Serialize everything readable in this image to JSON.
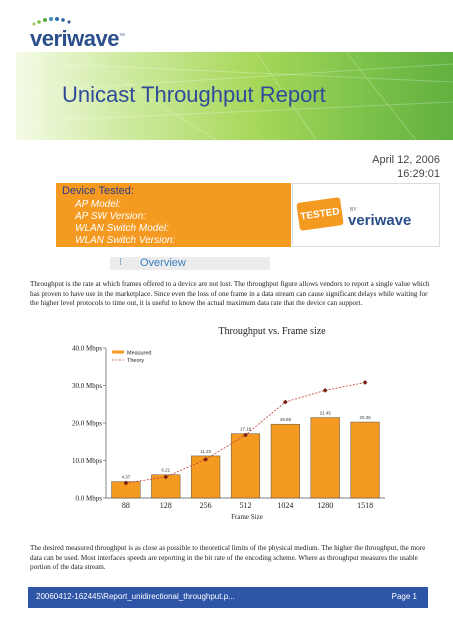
{
  "logo": {
    "text_a": "veri",
    "text_b": "wave",
    "trademark": "™"
  },
  "header": {
    "title": "Unicast Throughput Report",
    "date": "April 12, 2006",
    "time": "16:29:01"
  },
  "device": {
    "heading": "Device Tested:",
    "fields": [
      "AP Model:",
      "AP SW Version:",
      "WLAN Switch Model:",
      "WLAN Switch Version:"
    ]
  },
  "badge": {
    "tested": "TESTED",
    "by": "BY",
    "brand": "veriwave"
  },
  "overview": {
    "heading": "Overview",
    "paragraph1": "Throughput is the rate at which frames offered to a device are not lost. The throughput figure allows vendors to report a single value which has proven to have use in the marketplace. Since even the loss of one frame in a data stream can cause significant delays while waiting for the higher level protocols to time out, it is useful to know the actual maximum data rate that the device can support.",
    "paragraph2": "The desired measured throughput is as close as possible to theoretical limits of the physical medium. The higher the throughput, the more data can be used. Most interfaces speeds are reporting in the bit rate of the encoding scheme. Where as throughput measures the usable portion of the data stream."
  },
  "chart_data": {
    "type": "bar",
    "title": "Throughput vs. Frame size",
    "xlabel": "Frame Size",
    "ylabel": "",
    "categories": [
      "88",
      "128",
      "256",
      "512",
      "1024",
      "1280",
      "1518"
    ],
    "ytick_labels": [
      "0.0 Mbps",
      "10.0 Mbps",
      "20.0 Mbps",
      "30.0 Mbps",
      "40.0 Mbps"
    ],
    "yticks": [
      0,
      10,
      20,
      30,
      40
    ],
    "ylim": [
      0,
      40
    ],
    "series": [
      {
        "name": "Measured",
        "type": "bar",
        "color": "#f59a21",
        "values": [
          4.37,
          6.21,
          11.22,
          17.16,
          19.69,
          21.45,
          20.26
        ],
        "labels": [
          "4.37",
          "6.21",
          "11.22",
          "17.16",
          "19.69",
          "21.45",
          "20.26"
        ]
      },
      {
        "name": "Theory",
        "type": "line",
        "color": "#c0392b",
        "values": [
          4.0,
          5.6,
          10.3,
          16.8,
          25.6,
          28.7,
          30.8
        ]
      }
    ],
    "legend": "top-left"
  },
  "footer": {
    "path": "20060412-162445\\Report_unidirectional_throughput.p...",
    "page": "Page 1"
  },
  "colors": {
    "accent": "#f59a21",
    "brand_blue": "#2f55a8",
    "title_blue": "#2f4b9a"
  }
}
